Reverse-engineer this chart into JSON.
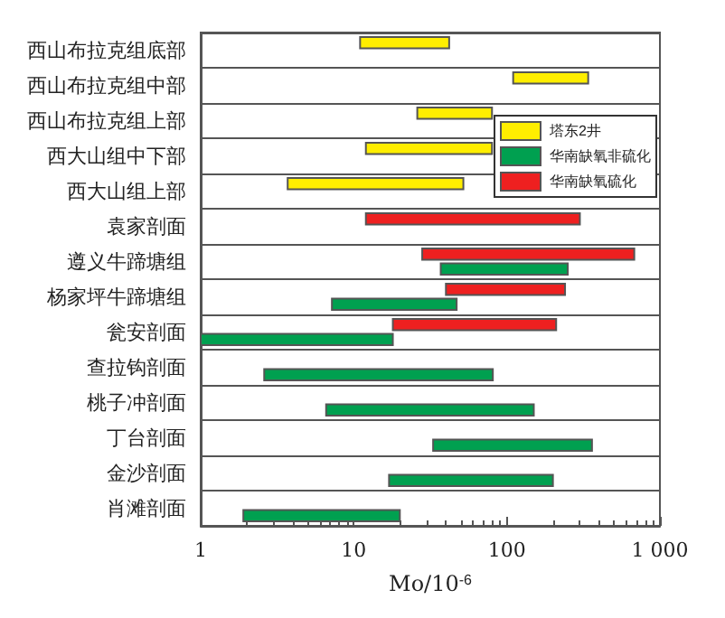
{
  "chart_data": {
    "type": "bar",
    "orientation": "horizontal",
    "xlabel": "Mo/10$^{-6}$",
    "categories": [
      "西山布拉克组底部",
      "西山布拉克组中部",
      "西山布拉克组上部",
      "西大山组中下部",
      "西大山组上部",
      "袁家剖面",
      "遵义牛蹄塘组",
      "杨家坪牛蹄塘组",
      "瓮安剖面",
      "查拉钩剖面",
      "桃子冲剖面",
      "丁台剖面",
      "金沙剖面",
      "肖滩剖面"
    ],
    "series": [
      {
        "name": "塔东2井",
        "color": "#ffee00",
        "base": [
          11,
          110,
          26,
          12,
          3.7,
          null,
          null,
          null,
          null,
          null,
          null,
          null,
          null,
          null
        ],
        "values": [
          31,
          230,
          54,
          68,
          48.3,
          null,
          null,
          null,
          null,
          null,
          null,
          null,
          null,
          null
        ]
      },
      {
        "name": "华南缺氧非硫化",
        "color": "#00a050",
        "base": [
          null,
          null,
          null,
          null,
          null,
          null,
          37,
          7.2,
          1,
          2.6,
          6.6,
          33,
          17,
          1.9
        ],
        "values": [
          null,
          null,
          null,
          null,
          null,
          null,
          213,
          39.8,
          17,
          78.4,
          143.4,
          327,
          183,
          18.1
        ]
      },
      {
        "name": "华南缺氧硫化",
        "color": "#ee2020",
        "base": [
          null,
          null,
          null,
          null,
          null,
          12,
          28,
          40,
          18,
          null,
          null,
          null,
          null,
          null
        ],
        "values": [
          null,
          null,
          null,
          null,
          null,
          288,
          652,
          200,
          192,
          null,
          null,
          null,
          null,
          null
        ]
      }
    ],
    "log": "x",
    "xlim": [
      1,
      1000
    ],
    "xticks": [
      1,
      10,
      100,
      {
        "value": 1000,
        "label": "1 000"
      }
    ],
    "grid": "y",
    "legend": "right"
  }
}
